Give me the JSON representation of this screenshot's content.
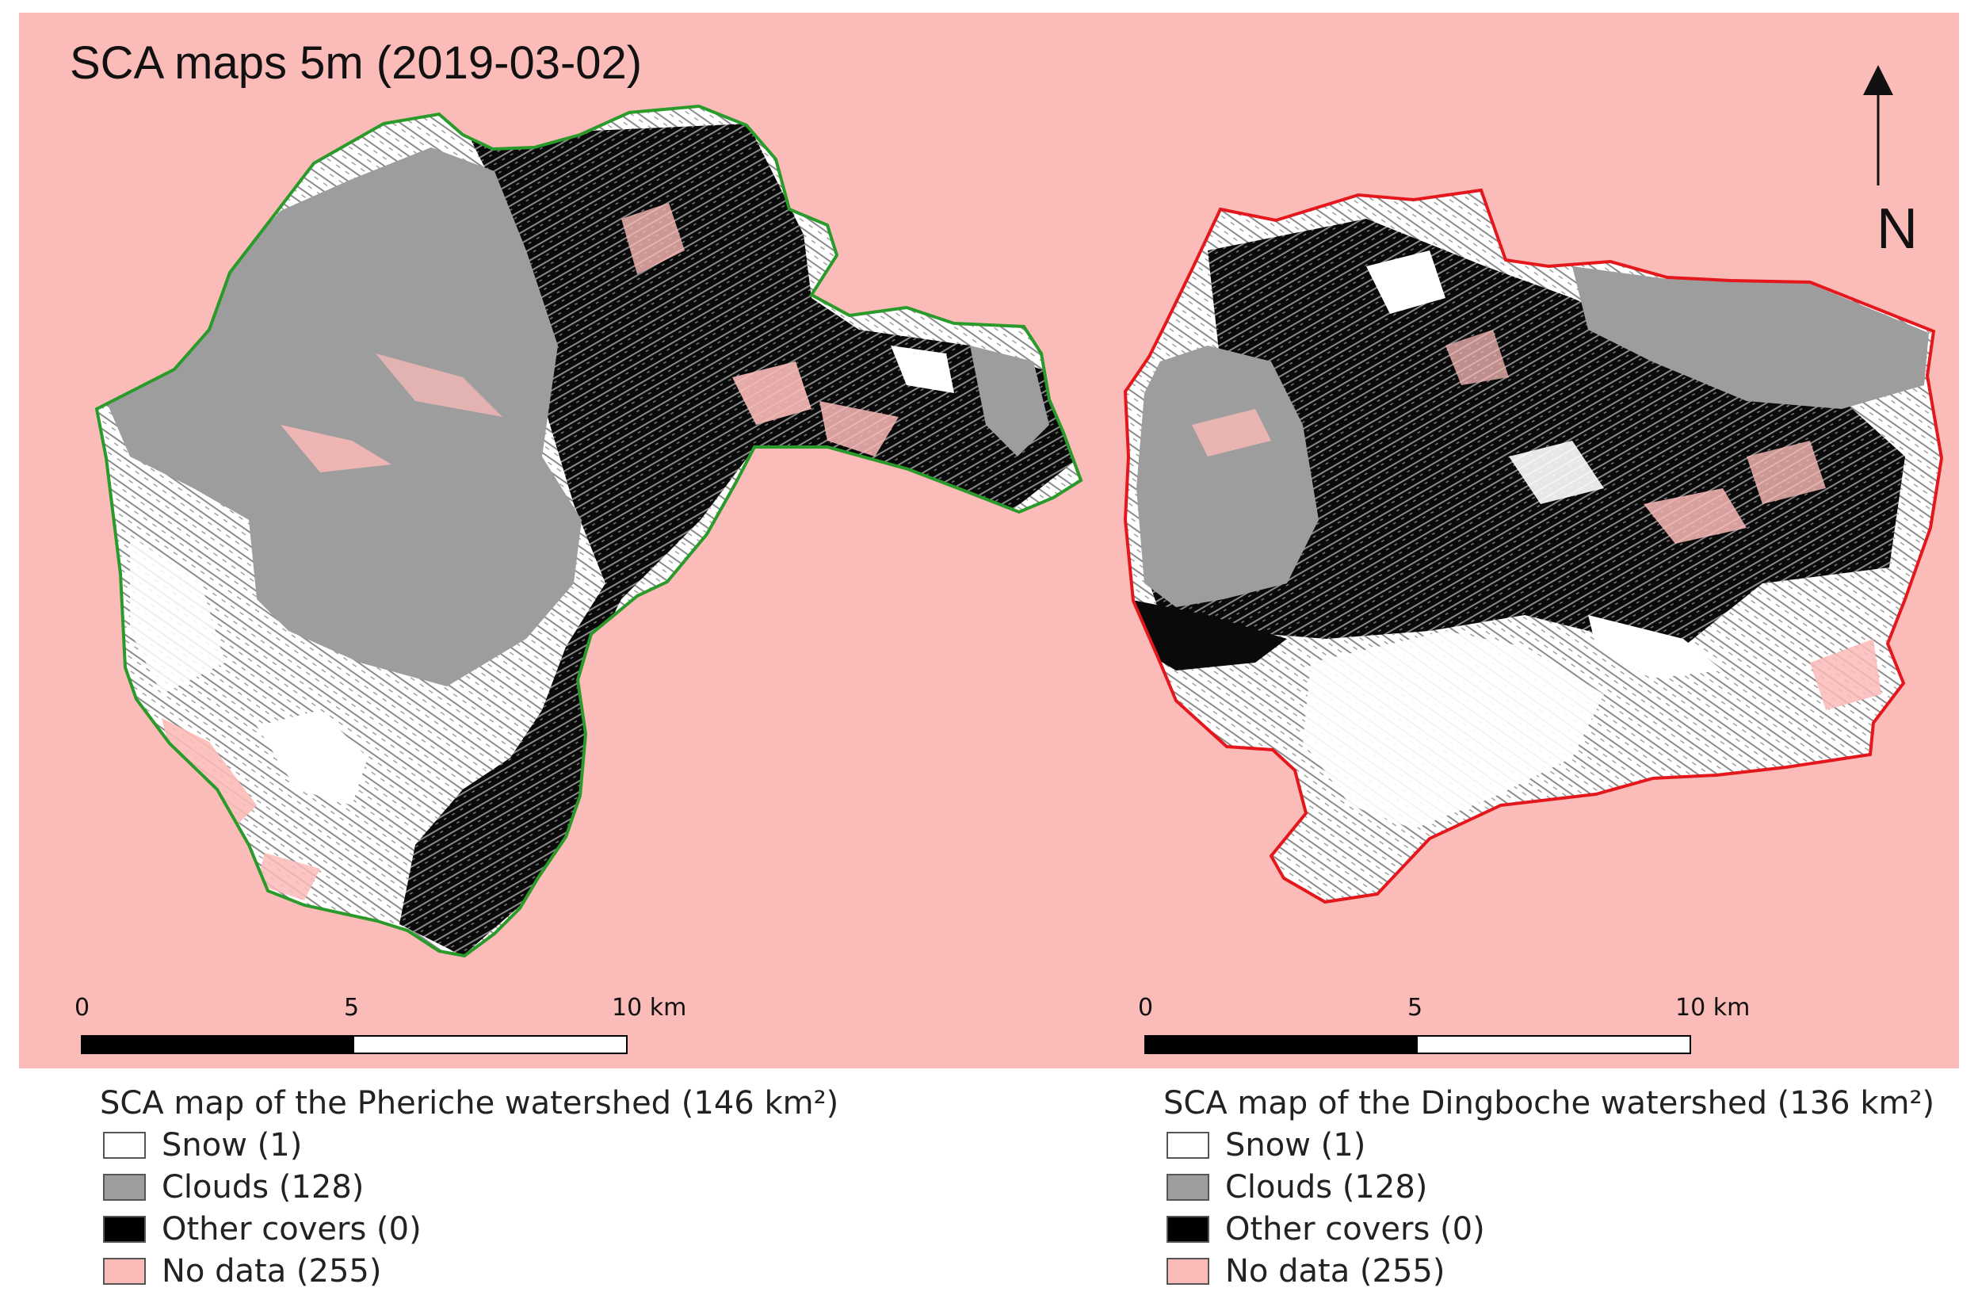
{
  "map": {
    "title": "SCA maps 5m (2019-03-02)",
    "north_label": "N",
    "colors": {
      "no_data": "#fbbbb8",
      "snow": "#ffffff",
      "clouds": "#9d9d9d",
      "other_covers": "#000000",
      "pheriche_outline": "#2a9a2a",
      "dingboche_outline": "#e4171c"
    }
  },
  "scalebars": [
    {
      "ticks": [
        "0",
        "5",
        "10 km"
      ]
    },
    {
      "ticks": [
        "0",
        "5",
        "10 km"
      ]
    }
  ],
  "legends": [
    {
      "title": "SCA map of the Pheriche watershed (146 km²)",
      "items": [
        {
          "label": "Snow (1)",
          "color": "#ffffff"
        },
        {
          "label": "Clouds (128)",
          "color": "#9d9d9d"
        },
        {
          "label": "Other covers (0)",
          "color": "#000000"
        },
        {
          "label": "No data (255)",
          "color": "#fbbbb8"
        }
      ]
    },
    {
      "title": "SCA map of the Dingboche watershed (136 km²)",
      "items": [
        {
          "label": "Snow (1)",
          "color": "#ffffff"
        },
        {
          "label": "Clouds (128)",
          "color": "#9d9d9d"
        },
        {
          "label": "Other covers (0)",
          "color": "#000000"
        },
        {
          "label": "No data (255)",
          "color": "#fbbbb8"
        }
      ]
    }
  ]
}
